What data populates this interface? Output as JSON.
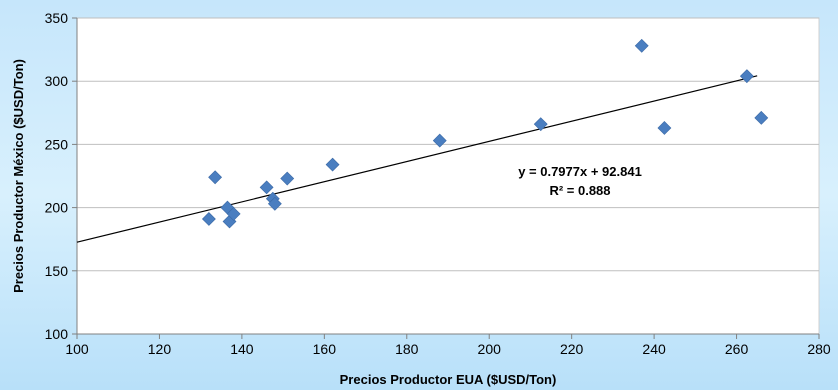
{
  "chart_data": {
    "type": "scatter",
    "title": "",
    "xlabel": "Precios Productor  EUA ($USD/Ton)",
    "ylabel": "Precios Productor  México ($USD/Ton)",
    "xlim": [
      100,
      280
    ],
    "ylim": [
      100,
      350
    ],
    "xticks": [
      100,
      120,
      140,
      160,
      180,
      200,
      220,
      240,
      260,
      280
    ],
    "yticks": [
      100,
      150,
      200,
      250,
      300,
      350
    ],
    "grid": true,
    "marker_color": "#4a7ec0",
    "series": [
      {
        "points": [
          {
            "x": 132,
            "y": 191
          },
          {
            "x": 133.5,
            "y": 224
          },
          {
            "x": 136.5,
            "y": 200
          },
          {
            "x": 137,
            "y": 189
          },
          {
            "x": 138,
            "y": 195
          },
          {
            "x": 146,
            "y": 216
          },
          {
            "x": 147.5,
            "y": 207
          },
          {
            "x": 148,
            "y": 203
          },
          {
            "x": 151,
            "y": 223
          },
          {
            "x": 162,
            "y": 234
          },
          {
            "x": 188,
            "y": 253
          },
          {
            "x": 212.5,
            "y": 266
          },
          {
            "x": 237,
            "y": 328
          },
          {
            "x": 242.5,
            "y": 263
          },
          {
            "x": 262.5,
            "y": 304
          },
          {
            "x": 266,
            "y": 271
          }
        ]
      }
    ],
    "trendline": {
      "slope": 0.7977,
      "intercept": 92.841,
      "x_range": [
        100,
        265
      ],
      "equation_label": "y = 0.7977x + 92.841",
      "r2_label": "R² = 0.888"
    }
  }
}
